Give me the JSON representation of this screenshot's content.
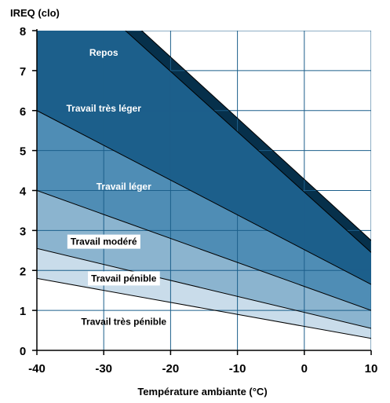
{
  "chart_data": {
    "type": "area",
    "title": "",
    "ylabel": "IREQ (clo)",
    "xlabel": "Température ambiante (°C)",
    "xlim": [
      -40,
      10
    ],
    "ylim": [
      0,
      8
    ],
    "x_ticks": [
      -40,
      -30,
      -20,
      -10,
      0,
      10
    ],
    "y_ticks": [
      0,
      1,
      2,
      3,
      4,
      5,
      6,
      7,
      8
    ],
    "x_tick_labels": [
      "-40",
      "-30",
      "-20",
      "-10",
      "0",
      "10"
    ],
    "y_tick_labels": [
      "0",
      "1",
      "2",
      "3",
      "4",
      "5",
      "6",
      "7",
      "8"
    ],
    "grid": true,
    "boundaries": [
      {
        "x": [
          -40,
          10
        ],
        "y": [
          1.8,
          0.3
        ]
      },
      {
        "x": [
          -40,
          10
        ],
        "y": [
          2.55,
          0.55
        ]
      },
      {
        "x": [
          -40,
          10
        ],
        "y": [
          4.0,
          1.0
        ]
      },
      {
        "x": [
          -40,
          10
        ],
        "y": [
          6.0,
          1.65
        ]
      },
      {
        "x": [
          -40,
          10
        ],
        "y": [
          10.0,
          2.45
        ]
      },
      {
        "x": [
          -40,
          10
        ],
        "y": [
          10.4,
          2.75
        ]
      }
    ],
    "series": [
      {
        "name": "Travail très pénible",
        "color": "#ffffff",
        "text_color": "#000000",
        "label_box": false,
        "label_x": -27,
        "label_y": 0.72
      },
      {
        "name": "Travail pénible",
        "color": "#c9dcea",
        "text_color": "#000000",
        "label_box": true,
        "label_x": -27,
        "label_y": 1.8
      },
      {
        "name": "Travail modéré",
        "color": "#8bb4cf",
        "text_color": "#000000",
        "label_box": true,
        "label_x": -30,
        "label_y": 2.72
      },
      {
        "name": "Travail léger",
        "color": "#4f8db5",
        "text_color": "#ffffff",
        "label_box": false,
        "label_x": -27,
        "label_y": 4.1
      },
      {
        "name": "Travail très léger",
        "color": "#1c5f8b",
        "text_color": "#ffffff",
        "label_box": false,
        "label_x": -30,
        "label_y": 6.05
      },
      {
        "name": "Repos",
        "color": "#06304b",
        "text_color": "#ffffff",
        "label_box": false,
        "label_x": -30,
        "label_y": 7.45
      }
    ],
    "grid_color": "#1c5f8b"
  }
}
